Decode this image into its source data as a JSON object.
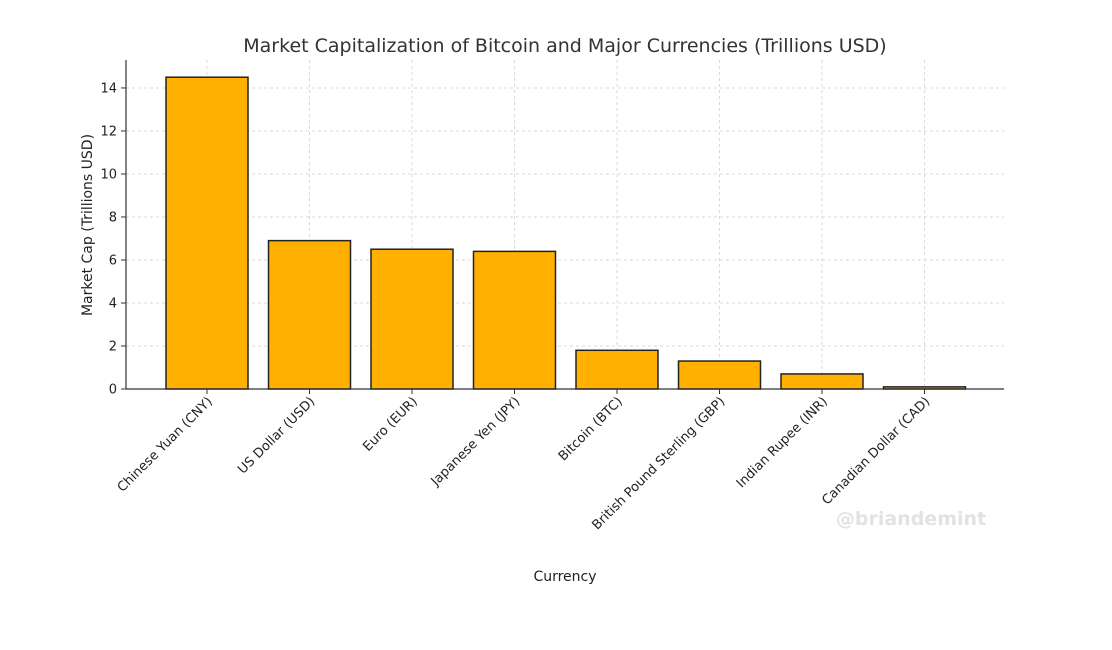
{
  "chart_data": {
    "type": "bar",
    "title": "Market Capitalization of Bitcoin and Major Currencies (Trillions USD)",
    "xlabel": "Currency",
    "ylabel": "Market Cap (Trillions USD)",
    "categories": [
      "Chinese Yuan (CNY)",
      "US Dollar (USD)",
      "Euro (EUR)",
      "Japanese Yen (JPY)",
      "Bitcoin (BTC)",
      "British Pound Sterling (GBP)",
      "Indian Rupee (INR)",
      "Canadian Dollar (CAD)"
    ],
    "values": [
      14.5,
      6.9,
      6.5,
      6.4,
      1.8,
      1.3,
      0.7,
      0.1
    ],
    "ylim": [
      0,
      15.3
    ],
    "yticks": [
      0,
      2,
      4,
      6,
      8,
      10,
      12,
      14
    ],
    "grid": true,
    "bar_color": "#ffb000",
    "bar_edge_color": "#222222"
  },
  "watermark": "@briandemint"
}
